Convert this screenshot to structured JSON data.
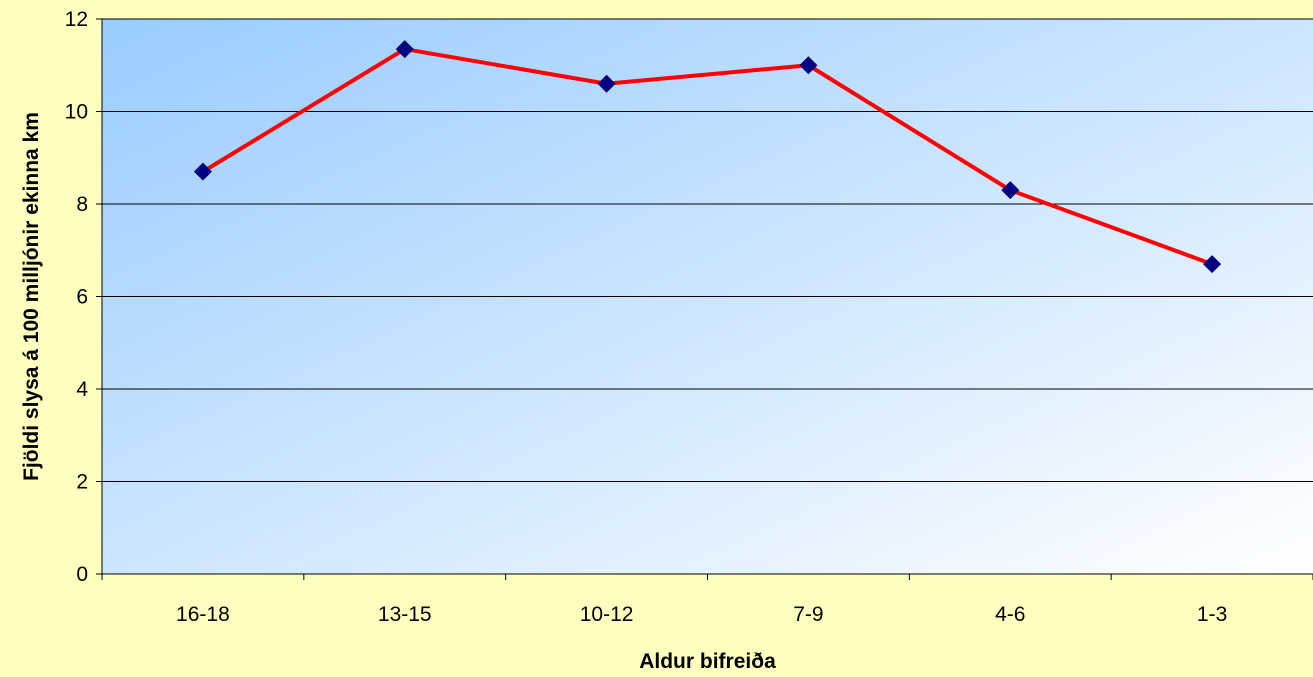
{
  "chart_data": {
    "type": "line",
    "title": "",
    "xlabel": "Aldur bifreiða",
    "ylabel": "Fjöldi slysa á 100 milljónir ekinna km",
    "categories": [
      "16-18",
      "13-15",
      "10-12",
      "7-9",
      "4-6",
      "1-3"
    ],
    "series": [
      {
        "values": [
          8.7,
          11.35,
          10.6,
          11.0,
          8.3,
          6.7
        ],
        "line_color": "#ff0000",
        "marker_color": "#000080",
        "marker": "diamond"
      }
    ],
    "ylim": [
      0,
      12
    ],
    "yticks": [
      0,
      2,
      4,
      6,
      8,
      10,
      12
    ],
    "grid": "horizontal",
    "legend": "none"
  },
  "colors": {
    "page_background": "#ffffc0",
    "plot_gradient_start": "#99ccff",
    "plot_gradient_end": "#ffffff",
    "gridline": "#000000",
    "axis": "#000000"
  }
}
